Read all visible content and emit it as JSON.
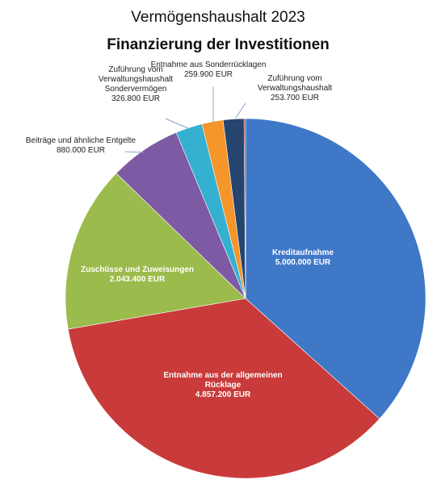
{
  "chart_data": {
    "type": "pie",
    "title": "Vermögenshaushalt 2023",
    "subtitle": "Finanzierung der Investitionen",
    "unit": "EUR",
    "slices": [
      {
        "lines": [
          "Kreditaufnahme",
          "5.000.000 EUR"
        ],
        "value": 5000000,
        "color": "#4078c8",
        "label_inside": true
      },
      {
        "lines": [
          "Entnahme aus der allgemeinen",
          "Rücklage",
          "4.857.200 EUR"
        ],
        "value": 4857200,
        "color": "#c93a3a",
        "label_inside": true
      },
      {
        "lines": [
          "Zuschüsse und Zuweisungen",
          "2.043.400 EUR"
        ],
        "value": 2043400,
        "color": "#9bbb4c",
        "label_inside": true
      },
      {
        "lines": [
          "Beiträge und ähnliche Entgelte",
          "880.000 EUR"
        ],
        "value": 880000,
        "color": "#7d5aa3",
        "label_inside": false
      },
      {
        "lines": [
          "Zuführung vom",
          "Verwaltungshaushalt",
          "Sondervermögen",
          "326.800 EUR"
        ],
        "value": 326800,
        "color": "#35b0d0",
        "label_inside": false
      },
      {
        "lines": [
          "Entnahme aus Sonderrücklagen",
          "259.900 EUR"
        ],
        "value": 259900,
        "color": "#f5952a",
        "label_inside": false
      },
      {
        "lines": [
          "Zuführung vom",
          "Verwaltungshaushalt",
          "253.700 EUR"
        ],
        "value": 253700,
        "color": "#26456e",
        "label_inside": false
      },
      {
        "lines": [],
        "value": 18000,
        "color": "#8b2a2a",
        "label_inside": false
      }
    ]
  }
}
